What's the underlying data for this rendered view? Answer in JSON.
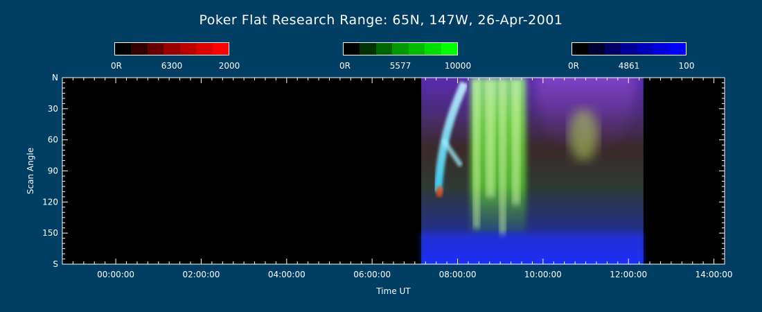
{
  "page": {
    "title": "Poker Flat Research Range: 65N, 147W, 26-Apr-2001"
  },
  "colorbars": [
    {
      "wavelength": "6300",
      "min_label": "0R",
      "max_label": "2000",
      "colors": [
        "#000000",
        "#330000",
        "#660000",
        "#990000",
        "#BB0000",
        "#DD0000",
        "#FF0000"
      ]
    },
    {
      "wavelength": "5577",
      "min_label": "0R",
      "max_label": "10000",
      "colors": [
        "#000000",
        "#003300",
        "#006600",
        "#009900",
        "#00BB00",
        "#00DD00",
        "#00FF00"
      ]
    },
    {
      "wavelength": "4861",
      "min_label": "0R",
      "max_label": "100",
      "colors": [
        "#000000",
        "#000033",
        "#000066",
        "#000099",
        "#0000BB",
        "#0000DD",
        "#0000FF"
      ]
    }
  ],
  "chart_data": {
    "type": "heatmap",
    "title": "Poker Flat Research Range: 65N, 147W, 26-Apr-2001",
    "xlabel": "Time UT",
    "ylabel": "Scan Angle",
    "x_ticks": [
      "00:00:00",
      "02:00:00",
      "04:00:00",
      "06:00:00",
      "08:00:00",
      "10:00:00",
      "12:00:00",
      "14:00:00"
    ],
    "x_tick_hours": [
      0,
      2,
      4,
      6,
      8,
      10,
      12,
      14
    ],
    "xlim_hours": [
      -1.25,
      14.25
    ],
    "y_ticks": [
      "N",
      "30",
      "60",
      "90",
      "120",
      "150",
      "S"
    ],
    "y_tick_values": [
      0,
      30,
      60,
      90,
      120,
      150,
      180
    ],
    "ylim": [
      0,
      180
    ],
    "data_coverage_hours": [
      7.15,
      12.35
    ],
    "background_color": "#000000",
    "emissions": [
      {
        "name": "6300",
        "color": "#FF0000",
        "max": 2000
      },
      {
        "name": "5577",
        "color": "#00FF00",
        "max": 10000
      },
      {
        "name": "4861",
        "color": "#0000FF",
        "max": 100
      }
    ],
    "features": [
      {
        "kind": "rgb_base_gradient",
        "hours": [
          7.15,
          12.35
        ]
      },
      {
        "kind": "cyan_arc",
        "hours": [
          7.5,
          8.0
        ],
        "angles": [
          5,
          110
        ]
      },
      {
        "kind": "green_aurora",
        "hours": [
          8.3,
          9.6
        ],
        "angles": [
          0,
          150
        ]
      },
      {
        "kind": "magenta_haze",
        "hours": [
          10.0,
          12.0
        ],
        "angles": [
          0,
          60
        ]
      },
      {
        "kind": "yellow_green_patch",
        "hours": [
          10.6,
          11.3
        ],
        "angles": [
          30,
          80
        ]
      },
      {
        "kind": "red_spot",
        "hours": [
          7.5,
          7.65
        ],
        "angles": [
          105,
          115
        ]
      }
    ]
  }
}
